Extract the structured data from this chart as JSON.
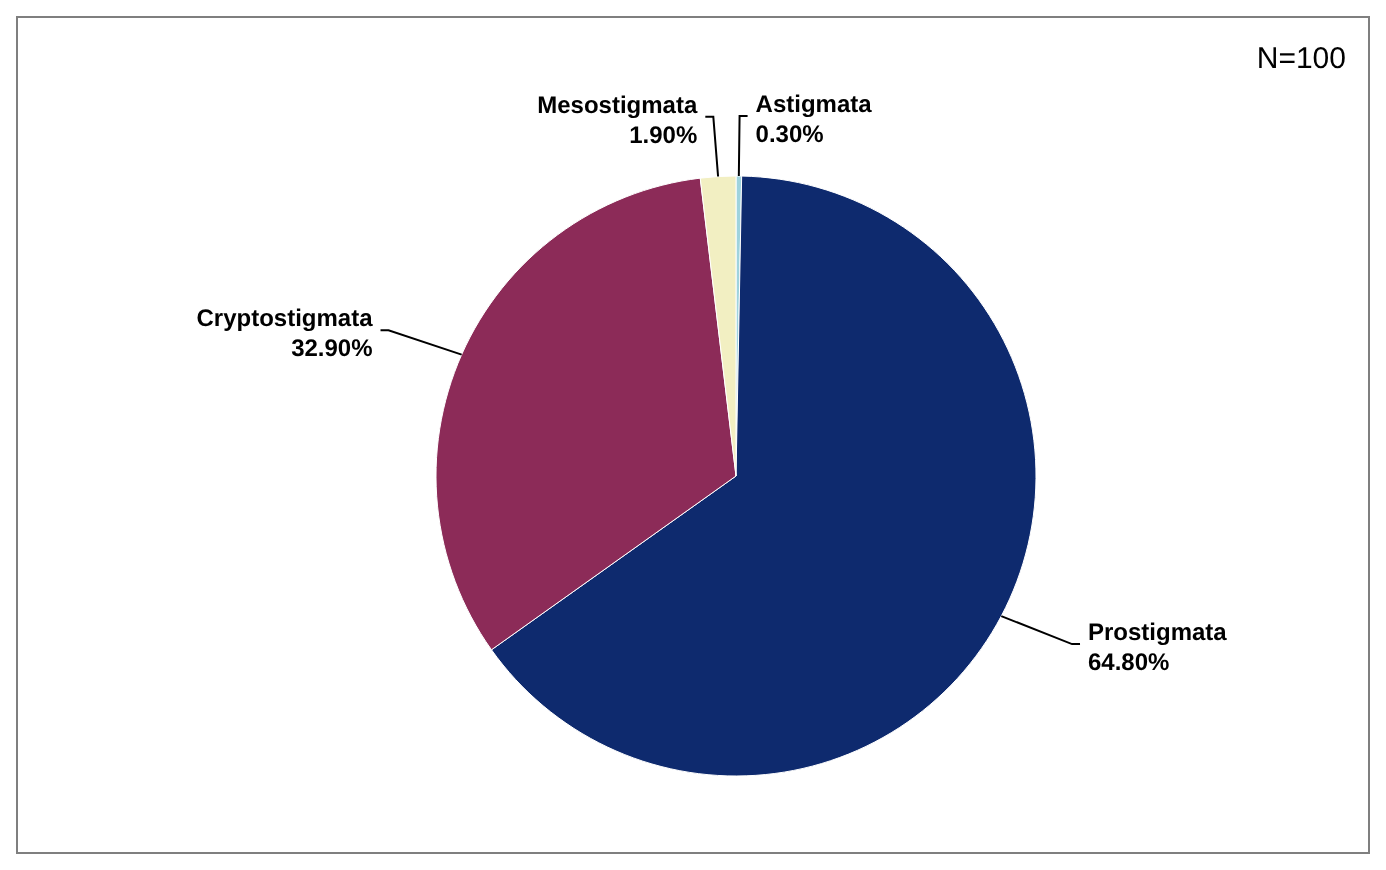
{
  "chart_data": {
    "type": "pie",
    "categories": [
      "Astigmata",
      "Prostigmata",
      "Cryptostigmata",
      "Mesostigmata"
    ],
    "values": [
      0.3,
      64.8,
      32.9,
      1.9
    ],
    "value_labels": [
      "0.30%",
      "64.80%",
      "32.90%",
      "1.90%"
    ],
    "colors": [
      "#9fd3dd",
      "#0e2a6e",
      "#8c2b58",
      "#f2efc2"
    ],
    "annotations": [
      "N=100"
    ]
  }
}
